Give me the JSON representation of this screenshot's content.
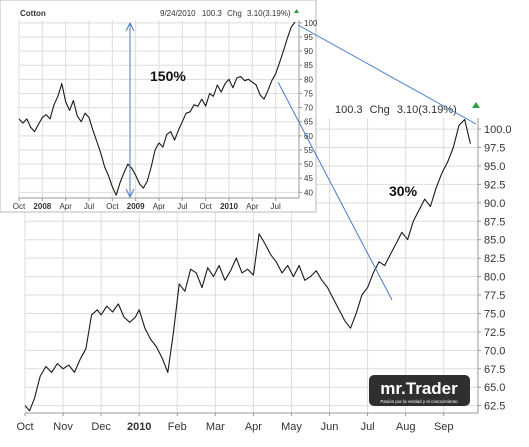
{
  "chart_data": [
    {
      "type": "line",
      "title": "",
      "header_quote": {
        "price": "100.3",
        "change_label": "Chg",
        "change": "3.10(3.19%)"
      },
      "x_ticks": [
        {
          "label": "Oct",
          "bold": false
        },
        {
          "label": "Nov",
          "bold": false
        },
        {
          "label": "Dec",
          "bold": false
        },
        {
          "label": "2010",
          "bold": true
        },
        {
          "label": "Feb",
          "bold": false
        },
        {
          "label": "Mar",
          "bold": false
        },
        {
          "label": "Apr",
          "bold": false
        },
        {
          "label": "May",
          "bold": false
        },
        {
          "label": "Jun",
          "bold": false
        },
        {
          "label": "Jul",
          "bold": false
        },
        {
          "label": "Aug",
          "bold": false
        },
        {
          "label": "Sep",
          "bold": false
        }
      ],
      "y_ticks": [
        "62.5",
        "65.0",
        "67.5",
        "70.0",
        "72.5",
        "75.0",
        "77.5",
        "80.0",
        "82.5",
        "85.0",
        "87.5",
        "90.0",
        "92.5",
        "95.0",
        "97.5",
        "100.0"
      ],
      "ylim": [
        61.5,
        101.5
      ],
      "xlim_months": [
        0,
        11.9
      ],
      "series": [
        {
          "x_months": [
            0,
            0.12,
            0.25,
            0.4,
            0.55,
            0.7,
            0.85,
            1.0,
            1.15,
            1.3,
            1.45,
            1.6,
            1.75,
            1.9,
            2.0,
            2.15,
            2.3,
            2.45,
            2.6,
            2.75,
            2.9,
            3.0,
            3.15,
            3.3,
            3.45,
            3.6,
            3.75,
            3.9,
            4.05,
            4.2,
            4.35,
            4.5,
            4.65,
            4.8,
            4.95,
            5.1,
            5.25,
            5.4,
            5.55,
            5.7,
            5.85,
            6.0,
            6.15,
            6.3,
            6.45,
            6.6,
            6.75,
            6.9,
            7.05,
            7.2,
            7.35,
            7.5,
            7.65,
            7.8,
            7.95,
            8.1,
            8.25,
            8.4,
            8.55,
            8.7,
            8.85,
            9.0,
            9.15,
            9.3,
            9.45,
            9.6,
            9.75,
            9.9,
            10.05,
            10.2,
            10.35,
            10.5,
            10.65,
            10.8,
            10.95,
            11.1,
            11.25,
            11.4,
            11.55,
            11.7
          ],
          "values": [
            62.5,
            61.8,
            63.5,
            66.5,
            67.8,
            67.0,
            68.2,
            67.5,
            68.0,
            67.0,
            68.8,
            70.2,
            74.8,
            75.5,
            74.8,
            76.0,
            75.2,
            76.3,
            74.5,
            73.8,
            74.5,
            75.5,
            73.0,
            71.5,
            70.5,
            69.0,
            67.0,
            72.5,
            79.0,
            78.0,
            81.0,
            80.5,
            78.5,
            81.2,
            80.0,
            81.5,
            79.5,
            80.8,
            82.5,
            80.5,
            81.0,
            80.2,
            85.8,
            84.5,
            83.0,
            82.0,
            80.5,
            81.5,
            80.0,
            81.5,
            79.5,
            80.0,
            80.8,
            79.5,
            78.5,
            77.0,
            75.5,
            74.0,
            73.0,
            75.0,
            77.5,
            78.5,
            80.5,
            82.0,
            81.5,
            83.0,
            84.5,
            86.0,
            85.0,
            87.5,
            89.0,
            90.5,
            89.5,
            92.0,
            94.0,
            95.5,
            97.5,
            100.5,
            101.3,
            98.0
          ]
        }
      ]
    },
    {
      "type": "line",
      "title": "Cotton",
      "header_quote": {
        "date": "9/24/2010",
        "price": "100.3",
        "change_label": "Chg",
        "change": "3.10(3.19%)"
      },
      "x_ticks": [
        {
          "label": "Oct",
          "bold": false
        },
        {
          "label": "2008",
          "bold": true
        },
        {
          "label": "Apr",
          "bold": false
        },
        {
          "label": "Jul",
          "bold": false
        },
        {
          "label": "Oct",
          "bold": false
        },
        {
          "label": "2009",
          "bold": true
        },
        {
          "label": "Apr",
          "bold": false
        },
        {
          "label": "Jul",
          "bold": false
        },
        {
          "label": "Oct",
          "bold": false
        },
        {
          "label": "2010",
          "bold": true
        },
        {
          "label": "Apr",
          "bold": false
        },
        {
          "label": "Jul",
          "bold": false
        }
      ],
      "y_ticks": [
        "40",
        "45",
        "50",
        "55",
        "60",
        "65",
        "70",
        "75",
        "80",
        "85",
        "90",
        "95",
        "100"
      ],
      "ylim": [
        38,
        101
      ],
      "xlim_months": [
        0,
        36
      ],
      "series": [
        {
          "x_months": [
            0,
            0.5,
            1.0,
            1.5,
            2.0,
            2.5,
            3.0,
            3.5,
            4.0,
            4.5,
            5.0,
            5.5,
            6.0,
            6.5,
            7.0,
            7.5,
            8.0,
            8.5,
            9.0,
            9.5,
            10.0,
            10.5,
            11.0,
            11.5,
            12.0,
            12.5,
            13.0,
            13.5,
            14.0,
            14.5,
            15.0,
            15.5,
            16.0,
            16.5,
            17.0,
            17.5,
            18.0,
            18.5,
            19.0,
            19.5,
            20.0,
            20.5,
            21.0,
            21.5,
            22.0,
            22.5,
            23.0,
            23.5,
            24.0,
            24.5,
            25.0,
            25.5,
            26.0,
            26.5,
            27.0,
            27.5,
            28.0,
            28.5,
            29.0,
            29.5,
            30.0,
            30.5,
            31.0,
            31.5,
            32.0,
            32.5,
            33.0,
            33.5,
            34.0,
            34.5,
            35.0,
            35.5
          ],
          "values": [
            66.0,
            64.5,
            66.0,
            63.0,
            61.5,
            64.0,
            66.5,
            67.5,
            66.0,
            71.0,
            74.0,
            78.5,
            72.0,
            69.0,
            72.5,
            67.0,
            65.0,
            68.0,
            66.5,
            62.0,
            58.0,
            54.0,
            49.0,
            46.0,
            42.0,
            39.0,
            43.5,
            47.0,
            50.0,
            48.5,
            46.0,
            43.0,
            41.5,
            44.0,
            49.0,
            55.0,
            57.5,
            56.0,
            60.5,
            61.5,
            58.5,
            62.0,
            65.0,
            68.0,
            68.5,
            71.0,
            70.5,
            73.0,
            70.5,
            75.0,
            74.0,
            78.0,
            75.5,
            78.5,
            80.0,
            77.0,
            80.5,
            81.0,
            79.5,
            80.0,
            79.0,
            78.0,
            74.5,
            73.0,
            76.0,
            79.5,
            82.0,
            86.0,
            90.0,
            94.5,
            98.5,
            100.3
          ]
        }
      ]
    }
  ],
  "annotations": {
    "big_move": "150%",
    "recent_move": "30%"
  },
  "logo": {
    "name": "mr.Trader",
    "tagline": "Pasión por la verdad y el conocimiento"
  },
  "colors": {
    "line": "#1a1a1a",
    "connector": "#4a7cc7",
    "up_marker": "#2e9e3e",
    "logo_bg": "#2f2f2f",
    "logo_text": "#ffffff"
  }
}
